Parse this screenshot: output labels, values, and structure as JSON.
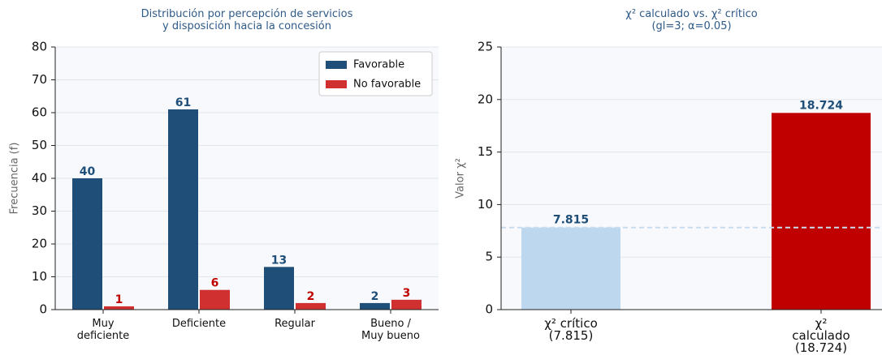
{
  "chart_data": [
    {
      "type": "grouped_bar",
      "title": "Distribución por percepción de servicios\ny disposición hacia la concesión",
      "ylabel": "Frecuencia (f)",
      "categories": [
        "Muy\ndeficiente",
        "Deficiente",
        "Regular",
        "Bueno /\nMuy bueno"
      ],
      "series": [
        {
          "name": "Favorable",
          "color": "#1f4e79",
          "label_color": "#1f4e79",
          "values": [
            40,
            61,
            13,
            2
          ]
        },
        {
          "name": "No favorable",
          "color": "#d03030",
          "label_color": "#c00000",
          "values": [
            1,
            6,
            2,
            3
          ]
        }
      ],
      "ylim": [
        0,
        80
      ],
      "yticks": [
        0,
        10,
        20,
        30,
        40,
        50,
        60,
        70,
        80
      ],
      "grid": true,
      "legend": "upper right"
    },
    {
      "type": "bar",
      "title": "χ² calculado vs. χ² crítico\n(gl=3; α=0.05)",
      "ylabel": "Valor χ²",
      "categories": [
        "χ² crítico\n(7.815)",
        "χ² calculado\n(18.724)"
      ],
      "values": [
        7.815,
        18.724
      ],
      "colors": [
        "#bdd7ee",
        "#c00000"
      ],
      "label_color": "#1f4e79",
      "reference_line": 7.815,
      "ylim": [
        0,
        25
      ],
      "yticks": [
        0,
        5,
        10,
        15,
        20,
        25
      ],
      "grid": true
    }
  ]
}
